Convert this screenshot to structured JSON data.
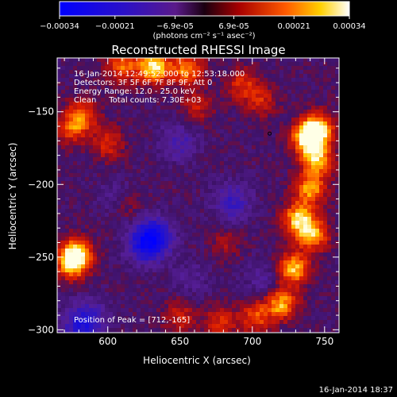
{
  "colorbar": {
    "ticks": [
      "-0.00034",
      "-0.00021",
      "-6.9e-05",
      "6.9e-05",
      "0.00021",
      "0.00034"
    ],
    "unit": "(photons cm⁻² s⁻¹ asec⁻²)",
    "range": [
      -0.00034,
      0.00034
    ]
  },
  "chart_data": {
    "type": "heatmap",
    "title": "Reconstructed RHESSI Image",
    "xlabel": "Heliocentric X (arcsec)",
    "ylabel": "Heliocentric Y (arcsec)",
    "xlim": [
      565,
      760
    ],
    "ylim": [
      -302,
      -113
    ],
    "xticks": [
      "600",
      "650",
      "700",
      "750"
    ],
    "yticks": [
      "-150",
      "-200",
      "-250",
      "-300"
    ],
    "info_lines": [
      "16-Jan-2014 12:49:52.000 to 12:53:18.000",
      "Detectors: 3F 5F 6F 7F 8F 9F, Att 0",
      "Energy Range: 12.0 - 25.0 keV",
      "Clean     Total counts: 7.30E+03"
    ],
    "peak_text": "Position of Peak = [712,-165]",
    "peak": [
      712,
      -165
    ],
    "features": [
      {
        "x": 632,
        "y": -119,
        "v": 1.0
      },
      {
        "x": 610,
        "y": -119,
        "v": 0.6
      },
      {
        "x": 655,
        "y": -121,
        "v": 0.7
      },
      {
        "x": 738,
        "y": -168,
        "v": 0.95
      },
      {
        "x": 746,
        "y": -162,
        "v": 0.85
      },
      {
        "x": 745,
        "y": -183,
        "v": 0.8
      },
      {
        "x": 740,
        "y": -203,
        "v": 0.75
      },
      {
        "x": 732,
        "y": -224,
        "v": 0.85
      },
      {
        "x": 742,
        "y": -235,
        "v": 0.75
      },
      {
        "x": 728,
        "y": -258,
        "v": 0.85
      },
      {
        "x": 720,
        "y": -282,
        "v": 0.8
      },
      {
        "x": 702,
        "y": -291,
        "v": 0.55
      },
      {
        "x": 678,
        "y": -295,
        "v": 0.45
      },
      {
        "x": 650,
        "y": -291,
        "v": 0.4
      },
      {
        "x": 578,
        "y": -248,
        "v": 0.9
      },
      {
        "x": 575,
        "y": -255,
        "v": 0.65
      },
      {
        "x": 583,
        "y": -152,
        "v": 0.55
      },
      {
        "x": 575,
        "y": -162,
        "v": 0.5
      },
      {
        "x": 600,
        "y": -172,
        "v": 0.45
      },
      {
        "x": 662,
        "y": -147,
        "v": 0.35
      },
      {
        "x": 693,
        "y": -131,
        "v": 0.45
      },
      {
        "x": 706,
        "y": -143,
        "v": 0.4
      },
      {
        "x": 613,
        "y": -214,
        "v": 0.3
      },
      {
        "x": 682,
        "y": -241,
        "v": 0.25
      },
      {
        "x": 632,
        "y": -236,
        "v": -0.7
      },
      {
        "x": 625,
        "y": -242,
        "v": -0.45
      },
      {
        "x": 686,
        "y": -212,
        "v": -0.45
      },
      {
        "x": 649,
        "y": -171,
        "v": -0.35
      },
      {
        "x": 581,
        "y": -298,
        "v": -0.45
      },
      {
        "x": 588,
        "y": -291,
        "v": -0.3
      },
      {
        "x": 607,
        "y": -210,
        "v": -0.25
      },
      {
        "x": 708,
        "y": -266,
        "v": -0.25
      },
      {
        "x": 658,
        "y": -265,
        "v": -0.2
      }
    ]
  },
  "footer": {
    "timestamp": "16-Jan-2014 18:37"
  }
}
